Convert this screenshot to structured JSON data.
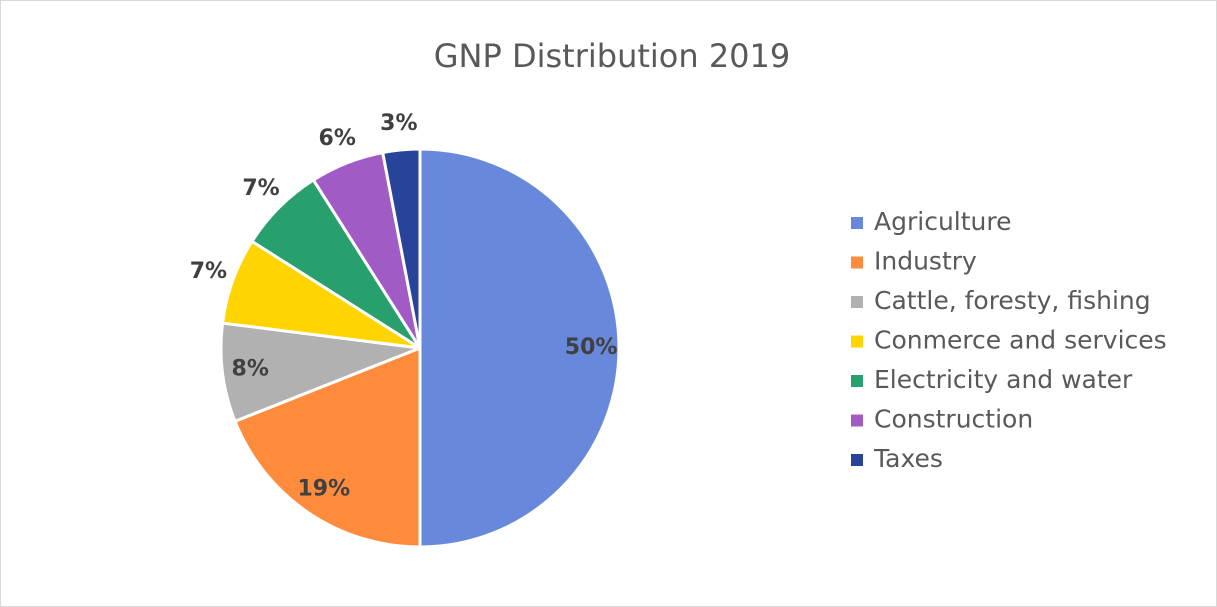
{
  "chart_data": {
    "type": "pie",
    "title": "GNP Distribution 2019",
    "categories": [
      "Agriculture",
      "Industry",
      "Cattle, foresty, fishing",
      "Conmerce and services",
      "Electricity and water",
      "Construction",
      "Taxes"
    ],
    "values": [
      50,
      19,
      8,
      7,
      7,
      6,
      3
    ],
    "value_labels": [
      "50%",
      "19%",
      "8%",
      "7%",
      "7%",
      "6%",
      "3%"
    ],
    "colors": [
      "#6788db",
      "#ff8b3d",
      "#b1b1b1",
      "#ffd400",
      "#27a06d",
      "#a05cc4",
      "#27449a"
    ],
    "legend": "right"
  }
}
